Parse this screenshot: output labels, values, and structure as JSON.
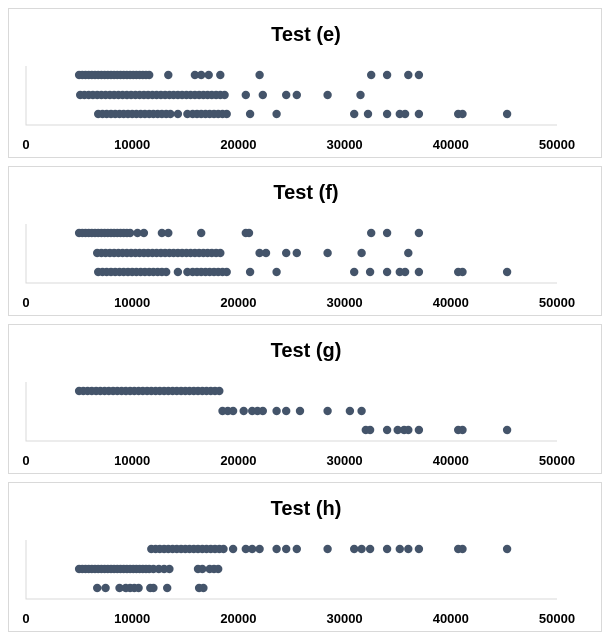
{
  "chart_data": [
    {
      "type": "scatter",
      "title": "Test (e)",
      "xlim": [
        0,
        50000
      ],
      "xticks": [
        "0",
        "10000",
        "20000",
        "30000",
        "40000",
        "50000"
      ],
      "grid": false,
      "rows": 3,
      "series": [
        {
          "row": 1,
          "x": [
            5000,
            5300,
            5600,
            5900,
            6200,
            6500,
            6800,
            7100,
            7400,
            7700,
            8000,
            8300,
            8600,
            8900,
            9200,
            9500,
            9800,
            10100,
            10400,
            10700,
            11000,
            11300,
            11600,
            13400,
            15900,
            16500,
            17200,
            18300,
            22000,
            32500,
            34000,
            36000,
            37000
          ]
        },
        {
          "row": 2,
          "x": [
            5100,
            5500,
            5900,
            6300,
            6700,
            7100,
            7500,
            7900,
            8300,
            8700,
            9100,
            9500,
            9900,
            10300,
            10700,
            11100,
            11500,
            11900,
            12300,
            12700,
            13100,
            13500,
            13900,
            14300,
            14700,
            15100,
            15500,
            15900,
            16300,
            16700,
            17100,
            17500,
            17900,
            18300,
            18700,
            20700,
            22300,
            24500,
            25500,
            28400,
            31500
          ]
        },
        {
          "row": 3,
          "x": [
            6800,
            7200,
            7600,
            8000,
            8400,
            8800,
            9200,
            9600,
            10000,
            10400,
            10800,
            11200,
            11600,
            12000,
            12400,
            12800,
            13200,
            13600,
            14300,
            15200,
            15700,
            16100,
            16500,
            16900,
            17300,
            17700,
            18100,
            18500,
            18900,
            21100,
            23600,
            30900,
            32200,
            34000,
            35200,
            35700,
            37000,
            40700,
            41100,
            45300
          ]
        }
      ]
    },
    {
      "type": "scatter",
      "title": "Test (f)",
      "xlim": [
        0,
        50000
      ],
      "xticks": [
        "0",
        "10000",
        "20000",
        "30000",
        "40000",
        "50000"
      ],
      "grid": false,
      "rows": 3,
      "series": [
        {
          "row": 1,
          "x": [
            5000,
            5300,
            5600,
            5900,
            6200,
            6500,
            6800,
            7100,
            7400,
            7700,
            8000,
            8300,
            8600,
            8900,
            9200,
            9500,
            9800,
            10500,
            11100,
            12800,
            13400,
            16500,
            20700,
            21000,
            32500,
            34000,
            37000
          ]
        },
        {
          "row": 2,
          "x": [
            6700,
            7100,
            7500,
            7900,
            8300,
            8700,
            9100,
            9500,
            9900,
            10300,
            10700,
            11100,
            11500,
            11900,
            12300,
            12700,
            13100,
            13500,
            13900,
            14300,
            14700,
            15100,
            15500,
            15900,
            16300,
            16700,
            17100,
            17500,
            17900,
            18300,
            22000,
            22600,
            24500,
            25500,
            28400,
            31600,
            36000
          ]
        },
        {
          "row": 3,
          "x": [
            6800,
            7200,
            7600,
            8000,
            8400,
            8800,
            9200,
            9600,
            10000,
            10400,
            10800,
            11200,
            11600,
            12000,
            12400,
            12800,
            13200,
            14300,
            15200,
            15700,
            16100,
            16500,
            16900,
            17300,
            17700,
            18100,
            18500,
            18900,
            21100,
            23600,
            30900,
            32400,
            34000,
            35200,
            35700,
            37000,
            40700,
            41100,
            45300
          ]
        }
      ]
    },
    {
      "type": "scatter",
      "title": "Test (g)",
      "xlim": [
        0,
        50000
      ],
      "xticks": [
        "0",
        "10000",
        "20000",
        "30000",
        "40000",
        "50000"
      ],
      "grid": false,
      "rows": 3,
      "series": [
        {
          "row": 1,
          "x": [
            5000,
            5400,
            5800,
            6200,
            6600,
            7000,
            7400,
            7800,
            8200,
            8600,
            9000,
            9400,
            9800,
            10200,
            10600,
            11000,
            11400,
            11800,
            12200,
            12600,
            13000,
            13400,
            13800,
            14200,
            14600,
            15000,
            15400,
            15800,
            16200,
            16600,
            17000,
            17400,
            17800,
            18200
          ]
        },
        {
          "row": 2,
          "x": [
            18500,
            19000,
            19500,
            20500,
            21300,
            21800,
            22300,
            23600,
            24500,
            25800,
            28400,
            30500,
            31600
          ]
        },
        {
          "row": 3,
          "x": [
            32000,
            32400,
            34000,
            35000,
            35600,
            36000,
            37000,
            40700,
            41100,
            45300
          ]
        }
      ]
    },
    {
      "type": "scatter",
      "title": "Test (h)",
      "xlim": [
        0,
        50000
      ],
      "xticks": [
        "0",
        "10000",
        "20000",
        "30000",
        "40000",
        "50000"
      ],
      "grid": false,
      "rows": 3,
      "series": [
        {
          "row": 1,
          "x": [
            11800,
            12200,
            12600,
            13000,
            13400,
            13800,
            14200,
            14600,
            15000,
            15400,
            15800,
            16200,
            16600,
            17000,
            17400,
            17800,
            18200,
            18600,
            19500,
            20700,
            21300,
            22000,
            23600,
            24500,
            25500,
            28400,
            30900,
            31600,
            32400,
            34000,
            35200,
            36000,
            37000,
            40700,
            41100,
            45300
          ]
        },
        {
          "row": 2,
          "x": [
            5000,
            5300,
            5600,
            5900,
            6200,
            6500,
            6800,
            7100,
            7400,
            7700,
            8000,
            8300,
            8600,
            8900,
            9200,
            9500,
            9800,
            10100,
            10400,
            10700,
            11000,
            11300,
            11600,
            12000,
            12500,
            13000,
            13500,
            16200,
            16600,
            17300,
            17700,
            18100
          ]
        },
        {
          "row": 3,
          "x": [
            6700,
            7500,
            8800,
            9400,
            9800,
            10200,
            10600,
            11700,
            12000,
            13300,
            16300,
            16700
          ]
        }
      ]
    }
  ]
}
